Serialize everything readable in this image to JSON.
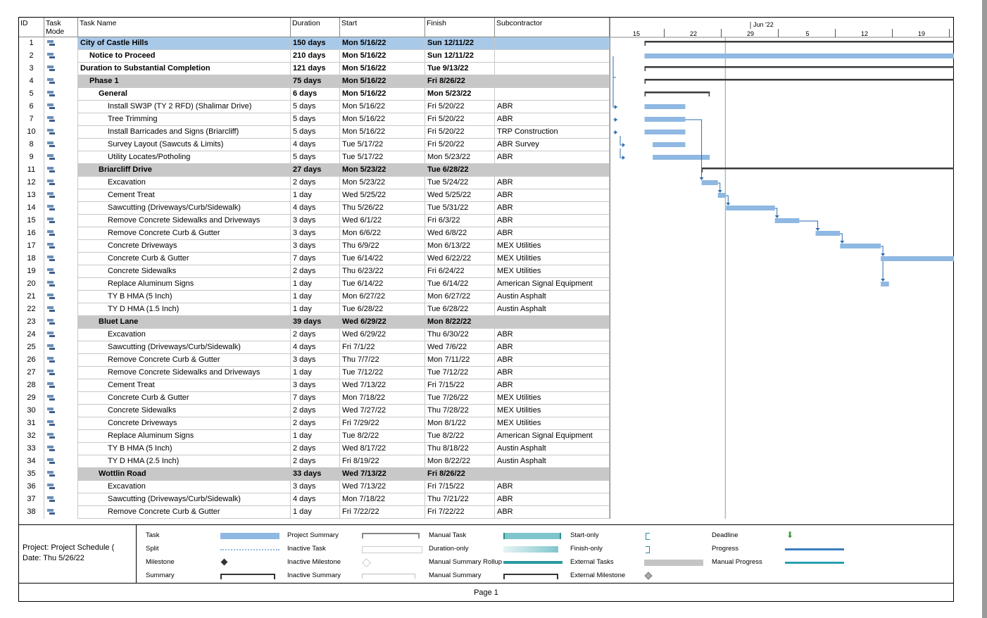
{
  "columns": {
    "id": "ID",
    "mode": "Task\nMode",
    "name": "Task Name",
    "duration": "Duration",
    "start": "Start",
    "finish": "Finish",
    "sub": "Subcontractor"
  },
  "timescale": {
    "month": "Jun '22",
    "days": [
      "15",
      "22",
      "29",
      "5",
      "12",
      "19"
    ]
  },
  "rows": [
    {
      "id": "1",
      "name": "City of Castle Hills",
      "duration": "150 days",
      "start": "Mon 5/16/22",
      "finish": "Sun 12/11/22",
      "sub": "",
      "level": 0,
      "style": "top"
    },
    {
      "id": "2",
      "name": "Notice to Proceed",
      "duration": "210 days",
      "start": "Mon 5/16/22",
      "finish": "Sun 12/11/22",
      "sub": "",
      "level": 1,
      "style": "bold"
    },
    {
      "id": "3",
      "name": "Duration to Substantial Completion",
      "duration": "121 days",
      "start": "Mon 5/16/22",
      "finish": "Tue 9/13/22",
      "sub": "",
      "level": 0,
      "style": "bold"
    },
    {
      "id": "4",
      "name": "Phase 1",
      "duration": "75 days",
      "start": "Mon 5/16/22",
      "finish": "Fri 8/26/22",
      "sub": "",
      "level": 1,
      "style": "summary"
    },
    {
      "id": "5",
      "name": "General",
      "duration": "6 days",
      "start": "Mon 5/16/22",
      "finish": "Mon 5/23/22",
      "sub": "",
      "level": 2,
      "style": "bold"
    },
    {
      "id": "6",
      "name": "Install SW3P (TY 2 RFD) (Shalimar Drive)",
      "duration": "5 days",
      "start": "Mon 5/16/22",
      "finish": "Fri 5/20/22",
      "sub": "ABR",
      "level": 3,
      "style": ""
    },
    {
      "id": "7",
      "name": "Tree Trimming",
      "duration": "5 days",
      "start": "Mon 5/16/22",
      "finish": "Fri 5/20/22",
      "sub": "ABR",
      "level": 3,
      "style": ""
    },
    {
      "id": "10",
      "name": "Install Barricades and Signs (Briarcliff)",
      "duration": "5 days",
      "start": "Mon 5/16/22",
      "finish": "Fri 5/20/22",
      "sub": "TRP Construction",
      "level": 3,
      "style": ""
    },
    {
      "id": "8",
      "name": "Survey Layout (Sawcuts & Limits)",
      "duration": "4 days",
      "start": "Tue 5/17/22",
      "finish": "Fri 5/20/22",
      "sub": "ABR Survey",
      "level": 3,
      "style": ""
    },
    {
      "id": "9",
      "name": "Utility Locates/Potholing",
      "duration": "5 days",
      "start": "Tue 5/17/22",
      "finish": "Mon 5/23/22",
      "sub": "ABR",
      "level": 3,
      "style": ""
    },
    {
      "id": "11",
      "name": "Briarcliff Drive",
      "duration": "27 days",
      "start": "Mon 5/23/22",
      "finish": "Tue 6/28/22",
      "sub": "",
      "level": 2,
      "style": "summary"
    },
    {
      "id": "12",
      "name": "Excavation",
      "duration": "2 days",
      "start": "Mon 5/23/22",
      "finish": "Tue 5/24/22",
      "sub": "ABR",
      "level": 3,
      "style": ""
    },
    {
      "id": "13",
      "name": "Cement Treat",
      "duration": "1 day",
      "start": "Wed 5/25/22",
      "finish": "Wed 5/25/22",
      "sub": "ABR",
      "level": 3,
      "style": ""
    },
    {
      "id": "14",
      "name": "Sawcutting (Driveways/Curb/Sidewalk)",
      "duration": "4 days",
      "start": "Thu 5/26/22",
      "finish": "Tue 5/31/22",
      "sub": "ABR",
      "level": 3,
      "style": ""
    },
    {
      "id": "15",
      "name": "Remove Concrete Sidewalks and Driveways",
      "duration": "3 days",
      "start": "Wed 6/1/22",
      "finish": "Fri 6/3/22",
      "sub": "ABR",
      "level": 3,
      "style": ""
    },
    {
      "id": "16",
      "name": "Remove Concrete Curb & Gutter",
      "duration": "3 days",
      "start": "Mon 6/6/22",
      "finish": "Wed 6/8/22",
      "sub": "ABR",
      "level": 3,
      "style": ""
    },
    {
      "id": "17",
      "name": "Concrete Driveways",
      "duration": "3 days",
      "start": "Thu 6/9/22",
      "finish": "Mon 6/13/22",
      "sub": "MEX Utilities",
      "level": 3,
      "style": ""
    },
    {
      "id": "18",
      "name": "Concrete Curb & Gutter",
      "duration": "7 days",
      "start": "Tue 6/14/22",
      "finish": "Wed 6/22/22",
      "sub": "MEX Utilities",
      "level": 3,
      "style": ""
    },
    {
      "id": "19",
      "name": "Concrete Sidewalks",
      "duration": "2 days",
      "start": "Thu 6/23/22",
      "finish": "Fri 6/24/22",
      "sub": "MEX Utilities",
      "level": 3,
      "style": ""
    },
    {
      "id": "20",
      "name": "Replace Aluminum Signs",
      "duration": "1 day",
      "start": "Tue 6/14/22",
      "finish": "Tue 6/14/22",
      "sub": "American Signal Equipment",
      "level": 3,
      "style": ""
    },
    {
      "id": "21",
      "name": "TY B HMA (5 Inch)",
      "duration": "1 day",
      "start": "Mon 6/27/22",
      "finish": "Mon 6/27/22",
      "sub": "Austin Asphalt",
      "level": 3,
      "style": ""
    },
    {
      "id": "22",
      "name": "TY D HMA (1.5 Inch)",
      "duration": "1 day",
      "start": "Tue 6/28/22",
      "finish": "Tue 6/28/22",
      "sub": "Austin Asphalt",
      "level": 3,
      "style": ""
    },
    {
      "id": "23",
      "name": "Bluet Lane",
      "duration": "39 days",
      "start": "Wed 6/29/22",
      "finish": "Mon 8/22/22",
      "sub": "",
      "level": 2,
      "style": "summary"
    },
    {
      "id": "24",
      "name": "Excavation",
      "duration": "2 days",
      "start": "Wed 6/29/22",
      "finish": "Thu 6/30/22",
      "sub": "ABR",
      "level": 3,
      "style": ""
    },
    {
      "id": "25",
      "name": "Sawcutting (Driveways/Curb/Sidewalk)",
      "duration": "4 days",
      "start": "Fri 7/1/22",
      "finish": "Wed 7/6/22",
      "sub": "ABR",
      "level": 3,
      "style": ""
    },
    {
      "id": "26",
      "name": "Remove Concrete Curb & Gutter",
      "duration": "3 days",
      "start": "Thu 7/7/22",
      "finish": "Mon 7/11/22",
      "sub": "ABR",
      "level": 3,
      "style": ""
    },
    {
      "id": "27",
      "name": "Remove Concrete Sidewalks and Driveways",
      "duration": "1 day",
      "start": "Tue 7/12/22",
      "finish": "Tue 7/12/22",
      "sub": "ABR",
      "level": 3,
      "style": ""
    },
    {
      "id": "28",
      "name": "Cement Treat",
      "duration": "3 days",
      "start": "Wed 7/13/22",
      "finish": "Fri 7/15/22",
      "sub": "ABR",
      "level": 3,
      "style": ""
    },
    {
      "id": "29",
      "name": "Concrete Curb & Gutter",
      "duration": "7 days",
      "start": "Mon 7/18/22",
      "finish": "Tue 7/26/22",
      "sub": "MEX Utilities",
      "level": 3,
      "style": ""
    },
    {
      "id": "30",
      "name": "Concrete Sidewalks",
      "duration": "2 days",
      "start": "Wed 7/27/22",
      "finish": "Thu 7/28/22",
      "sub": "MEX Utilities",
      "level": 3,
      "style": ""
    },
    {
      "id": "31",
      "name": "Concrete Driveways",
      "duration": "2 days",
      "start": "Fri 7/29/22",
      "finish": "Mon 8/1/22",
      "sub": "MEX Utilities",
      "level": 3,
      "style": ""
    },
    {
      "id": "32",
      "name": "Replace Aluminum Signs",
      "duration": "1 day",
      "start": "Tue 8/2/22",
      "finish": "Tue 8/2/22",
      "sub": "American Signal Equipment",
      "level": 3,
      "style": ""
    },
    {
      "id": "33",
      "name": "TY B HMA (5 Inch)",
      "duration": "2 days",
      "start": "Wed 8/17/22",
      "finish": "Thu 8/18/22",
      "sub": "Austin Asphalt",
      "level": 3,
      "style": ""
    },
    {
      "id": "34",
      "name": "TY D HMA (2.5 Inch)",
      "duration": "2 days",
      "start": "Fri 8/19/22",
      "finish": "Mon 8/22/22",
      "sub": "Austin Asphalt",
      "level": 3,
      "style": ""
    },
    {
      "id": "35",
      "name": "Wottlin Road",
      "duration": "33 days",
      "start": "Wed 7/13/22",
      "finish": "Fri 8/26/22",
      "sub": "",
      "level": 2,
      "style": "summary"
    },
    {
      "id": "36",
      "name": "Excavation",
      "duration": "3 days",
      "start": "Wed 7/13/22",
      "finish": "Fri 7/15/22",
      "sub": "ABR",
      "level": 3,
      "style": ""
    },
    {
      "id": "37",
      "name": "Sawcutting (Driveways/Curb/Sidewalk)",
      "duration": "4 days",
      "start": "Mon 7/18/22",
      "finish": "Thu 7/21/22",
      "sub": "ABR",
      "level": 3,
      "style": ""
    },
    {
      "id": "38",
      "name": "Remove Concrete Curb & Gutter",
      "duration": "1 day",
      "start": "Fri 7/22/22",
      "finish": "Fri 7/22/22",
      "sub": "ABR",
      "level": 3,
      "style": ""
    }
  ],
  "legend": {
    "project_line1": "Project: Project Schedule (",
    "project_line2": "Date: Thu 5/26/22",
    "items": [
      [
        "Task",
        "Project Summary",
        "Manual Task",
        "Start-only",
        "Deadline"
      ],
      [
        "Split",
        "Inactive Task",
        "Duration-only",
        "Finish-only",
        "Progress"
      ],
      [
        "Milestone",
        "Inactive Milestone",
        "Manual Summary Rollup",
        "External Tasks",
        "Manual Progress"
      ],
      [
        "Summary",
        "Inactive Summary",
        "Manual Summary",
        "External Milestone",
        ""
      ]
    ]
  },
  "footer": {
    "page": "Page 1"
  },
  "colors": {
    "bar": "#8fb8e2",
    "barBorder": "#5b8fc7",
    "summary": "#3a3a3a",
    "link": "#2a6db0",
    "top": "#a9c9e8",
    "grey": "#c8c8c8",
    "status": "#7fae7f"
  }
}
